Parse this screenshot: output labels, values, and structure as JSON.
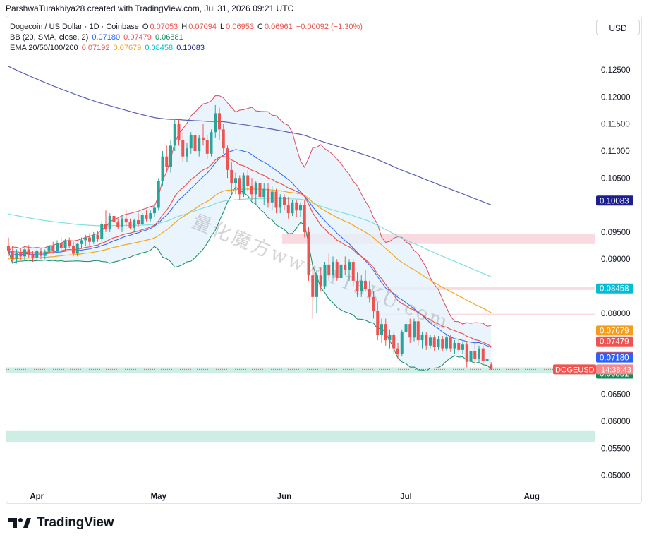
{
  "header": {
    "attribution": "ParshwaTurakhiya28 created with TradingView.com, Jul 31, 2026 09:21 UTC"
  },
  "legend": {
    "symbol": "Dogecoin / US Dollar · 1D · Coinbase",
    "o_label": "O",
    "o_value": "0.07053",
    "h_label": "H",
    "h_value": "0.07094",
    "l_label": "L",
    "l_value": "0.06953",
    "c_label": "C",
    "c_value": "0.06961",
    "change": "−0.00092 (−1.30%)",
    "bb_label": "BB (20, SMA, close, 2)",
    "bb_basis": "0.07180",
    "bb_upper": "0.07479",
    "bb_lower": "0.06881",
    "ema_label": "EMA 20/50/100/200",
    "ema20": "0.07192",
    "ema50": "0.07679",
    "ema100": "0.08458",
    "ema200": "0.10083"
  },
  "currency": "USD",
  "watermark": "量化魔方www.115KU.com",
  "brand": "TradingView",
  "colors": {
    "up": "#26a69a",
    "down": "#ef5350",
    "bb_band": "#e3f0fb",
    "bb_line": "#2962ff",
    "ema20": "#ef5350",
    "ema50": "#f5a623",
    "ema100": "#7ee0e0",
    "ema200": "#5d5fb3",
    "zone_red": "#f9d3dc",
    "zone_green": "#c5ebe1"
  },
  "chart_data": {
    "type": "candlestick",
    "symbol": "DOGEUSD",
    "price_axis_ticks": [
      "0.12500",
      "0.12000",
      "0.11500",
      "0.11000",
      "0.10500",
      "0.09500",
      "0.09000",
      "0.08000",
      "0.06500",
      "0.06000",
      "0.05500",
      "0.05000"
    ],
    "time_axis_ticks": [
      "Apr",
      "May",
      "Jun",
      "Jul",
      "Aug"
    ],
    "ylim": [
      0.0476,
      0.1288
    ],
    "price_labels": [
      {
        "text": "0.10083",
        "value": 0.10083,
        "color": "#1b1f8f"
      },
      {
        "text": "0.08458",
        "value": 0.08458,
        "color": "#00bcd4"
      },
      {
        "text": "0.07679",
        "value": 0.07679,
        "color": "#f59d1a"
      },
      {
        "text": "0.07479",
        "value": 0.07479,
        "color": "#ef5350"
      },
      {
        "text": "0.07192",
        "value": 0.07192,
        "color": "#ef5350"
      },
      {
        "text": "0.07180",
        "value": 0.0718,
        "color": "#2962ff"
      },
      {
        "text": "0.06881",
        "value": 0.06881,
        "color": "#138a5e"
      }
    ],
    "last_price_tag": {
      "symbol": "DOGEUSD",
      "countdown": "14:38:43",
      "value": 0.06961,
      "color": "#ef5350"
    },
    "zones": [
      {
        "color": "red",
        "from": 0.0928,
        "to": 0.0946,
        "start": "Jun 1"
      },
      {
        "color": "red",
        "from": 0.0843,
        "to": 0.0849,
        "start": "Jun 24"
      },
      {
        "color": "red",
        "from": 0.0796,
        "to": 0.0799,
        "start": "Jun 24"
      },
      {
        "color": "green",
        "from": 0.069,
        "to": 0.07,
        "start": "Mar 25"
      },
      {
        "color": "green",
        "from": 0.0562,
        "to": 0.0582,
        "start": "Mar 25"
      }
    ],
    "dates_start": "Mar 25",
    "candles": [
      [
        0.0925,
        0.094,
        0.0905,
        0.0915
      ],
      [
        0.0915,
        0.0925,
        0.0895,
        0.09
      ],
      [
        0.09,
        0.0918,
        0.0892,
        0.0912
      ],
      [
        0.0912,
        0.092,
        0.0898,
        0.0905
      ],
      [
        0.0905,
        0.0922,
        0.0898,
        0.0918
      ],
      [
        0.0918,
        0.0926,
        0.0902,
        0.0908
      ],
      [
        0.0908,
        0.0915,
        0.0895,
        0.0903
      ],
      [
        0.0903,
        0.0918,
        0.0898,
        0.0915
      ],
      [
        0.0915,
        0.092,
        0.09,
        0.0906
      ],
      [
        0.0906,
        0.0918,
        0.09,
        0.0914
      ],
      [
        0.0914,
        0.093,
        0.0908,
        0.0925
      ],
      [
        0.0925,
        0.0932,
        0.091,
        0.0915
      ],
      [
        0.0915,
        0.0935,
        0.0912,
        0.093
      ],
      [
        0.093,
        0.094,
        0.0915,
        0.092
      ],
      [
        0.092,
        0.0938,
        0.0915,
        0.0935
      ],
      [
        0.0935,
        0.094,
        0.092,
        0.0925
      ],
      [
        0.0925,
        0.0932,
        0.0905,
        0.091
      ],
      [
        0.091,
        0.093,
        0.0905,
        0.0928
      ],
      [
        0.0928,
        0.094,
        0.092,
        0.0935
      ],
      [
        0.0935,
        0.0945,
        0.0925,
        0.094
      ],
      [
        0.094,
        0.0948,
        0.0925,
        0.0932
      ],
      [
        0.0932,
        0.095,
        0.0928,
        0.0945
      ],
      [
        0.0945,
        0.0952,
        0.0932,
        0.0938
      ],
      [
        0.0938,
        0.097,
        0.0932,
        0.0965
      ],
      [
        0.0965,
        0.099,
        0.095,
        0.0955
      ],
      [
        0.0955,
        0.0985,
        0.095,
        0.098
      ],
      [
        0.098,
        0.0998,
        0.0962,
        0.0968
      ],
      [
        0.0968,
        0.0975,
        0.0955,
        0.096
      ],
      [
        0.096,
        0.098,
        0.095,
        0.0975
      ],
      [
        0.0975,
        0.0992,
        0.096,
        0.0968
      ],
      [
        0.0968,
        0.0975,
        0.0955,
        0.0958
      ],
      [
        0.0958,
        0.0975,
        0.0952,
        0.0972
      ],
      [
        0.0972,
        0.0985,
        0.096,
        0.0965
      ],
      [
        0.0965,
        0.0985,
        0.0962,
        0.0982
      ],
      [
        0.0982,
        0.099,
        0.097,
        0.0975
      ],
      [
        0.0975,
        0.099,
        0.097,
        0.0985
      ],
      [
        0.0985,
        0.1,
        0.0978,
        0.0995
      ],
      [
        0.0995,
        0.105,
        0.099,
        0.1045
      ],
      [
        0.1045,
        0.11,
        0.1035,
        0.109
      ],
      [
        0.109,
        0.111,
        0.106,
        0.107
      ],
      [
        0.107,
        0.112,
        0.106,
        0.111
      ],
      [
        0.111,
        0.116,
        0.11,
        0.115
      ],
      [
        0.115,
        0.116,
        0.111,
        0.112
      ],
      [
        0.112,
        0.1135,
        0.108,
        0.109
      ],
      [
        0.109,
        0.1115,
        0.108,
        0.1105
      ],
      [
        0.1105,
        0.1135,
        0.1095,
        0.113
      ],
      [
        0.113,
        0.114,
        0.1095,
        0.11
      ],
      [
        0.11,
        0.113,
        0.109,
        0.1125
      ],
      [
        0.1125,
        0.115,
        0.111,
        0.112
      ],
      [
        0.112,
        0.113,
        0.1085,
        0.1095
      ],
      [
        0.1095,
        0.114,
        0.109,
        0.1135
      ],
      [
        0.1135,
        0.1185,
        0.1125,
        0.117
      ],
      [
        0.117,
        0.118,
        0.112,
        0.114
      ],
      [
        0.114,
        0.115,
        0.1095,
        0.1105
      ],
      [
        0.1105,
        0.111,
        0.105,
        0.1065
      ],
      [
        0.1065,
        0.108,
        0.102,
        0.104
      ],
      [
        0.104,
        0.106,
        0.102,
        0.105
      ],
      [
        0.105,
        0.1055,
        0.101,
        0.102
      ],
      [
        0.102,
        0.106,
        0.1015,
        0.1055
      ],
      [
        0.1055,
        0.1065,
        0.1025,
        0.1035
      ],
      [
        0.1035,
        0.105,
        0.101,
        0.102
      ],
      [
        0.102,
        0.1045,
        0.1,
        0.104
      ],
      [
        0.104,
        0.105,
        0.1005,
        0.1015
      ],
      [
        0.1015,
        0.104,
        0.1,
        0.103
      ],
      [
        0.103,
        0.104,
        0.0995,
        0.1005
      ],
      [
        0.1005,
        0.1035,
        0.099,
        0.1025
      ],
      [
        0.1025,
        0.103,
        0.0985,
        0.0995
      ],
      [
        0.0995,
        0.102,
        0.0985,
        0.1015
      ],
      [
        0.1015,
        0.102,
        0.099,
        0.1
      ],
      [
        0.1,
        0.1015,
        0.0975,
        0.0985
      ],
      [
        0.0985,
        0.101,
        0.098,
        0.1005
      ],
      [
        0.1005,
        0.101,
        0.0978,
        0.099
      ],
      [
        0.099,
        0.1005,
        0.0978,
        0.1
      ],
      [
        0.1,
        0.101,
        0.094,
        0.095
      ],
      [
        0.095,
        0.096,
        0.086,
        0.087
      ],
      [
        0.087,
        0.089,
        0.079,
        0.083
      ],
      [
        0.083,
        0.088,
        0.08,
        0.087
      ],
      [
        0.087,
        0.0885,
        0.084,
        0.085
      ],
      [
        0.085,
        0.0895,
        0.0845,
        0.089
      ],
      [
        0.089,
        0.091,
        0.086,
        0.087
      ],
      [
        0.087,
        0.0905,
        0.0865,
        0.0895
      ],
      [
        0.0895,
        0.09,
        0.086,
        0.0865
      ],
      [
        0.0865,
        0.0895,
        0.086,
        0.089
      ],
      [
        0.089,
        0.0905,
        0.087,
        0.088
      ],
      [
        0.088,
        0.09,
        0.086,
        0.0895
      ],
      [
        0.0895,
        0.09,
        0.085,
        0.086
      ],
      [
        0.086,
        0.0875,
        0.083,
        0.084
      ],
      [
        0.084,
        0.087,
        0.083,
        0.086
      ],
      [
        0.086,
        0.088,
        0.084,
        0.0845
      ],
      [
        0.0845,
        0.086,
        0.082,
        0.083
      ],
      [
        0.083,
        0.084,
        0.079,
        0.0805
      ],
      [
        0.0805,
        0.082,
        0.075,
        0.076
      ],
      [
        0.076,
        0.079,
        0.0745,
        0.078
      ],
      [
        0.078,
        0.079,
        0.074,
        0.075
      ],
      [
        0.075,
        0.077,
        0.0735,
        0.076
      ],
      [
        0.076,
        0.0765,
        0.0725,
        0.0735
      ],
      [
        0.0735,
        0.0745,
        0.0715,
        0.0725
      ],
      [
        0.0725,
        0.077,
        0.072,
        0.0765
      ],
      [
        0.0765,
        0.0795,
        0.0755,
        0.078
      ],
      [
        0.078,
        0.079,
        0.0745,
        0.0755
      ],
      [
        0.0755,
        0.079,
        0.0748,
        0.0785
      ],
      [
        0.0785,
        0.079,
        0.074,
        0.075
      ],
      [
        0.075,
        0.0765,
        0.0735,
        0.076
      ],
      [
        0.076,
        0.0765,
        0.0732,
        0.074
      ],
      [
        0.074,
        0.076,
        0.0735,
        0.0755
      ],
      [
        0.0755,
        0.076,
        0.073,
        0.0738
      ],
      [
        0.0738,
        0.0758,
        0.0732,
        0.0752
      ],
      [
        0.0752,
        0.0758,
        0.073,
        0.0735
      ],
      [
        0.0735,
        0.076,
        0.073,
        0.0755
      ],
      [
        0.0755,
        0.076,
        0.0728,
        0.0735
      ],
      [
        0.0735,
        0.075,
        0.0725,
        0.0745
      ],
      [
        0.0745,
        0.0752,
        0.0728,
        0.0732
      ],
      [
        0.0732,
        0.0748,
        0.0725,
        0.0742
      ],
      [
        0.0742,
        0.0748,
        0.07,
        0.071
      ],
      [
        0.071,
        0.0735,
        0.07,
        0.073
      ],
      [
        0.073,
        0.0745,
        0.0705,
        0.0715
      ],
      [
        0.0715,
        0.074,
        0.0708,
        0.0735
      ],
      [
        0.0735,
        0.074,
        0.0705,
        0.0712
      ],
      [
        0.0712,
        0.072,
        0.07,
        0.0715
      ],
      [
        0.07053,
        0.07094,
        0.06953,
        0.06961
      ]
    ]
  }
}
